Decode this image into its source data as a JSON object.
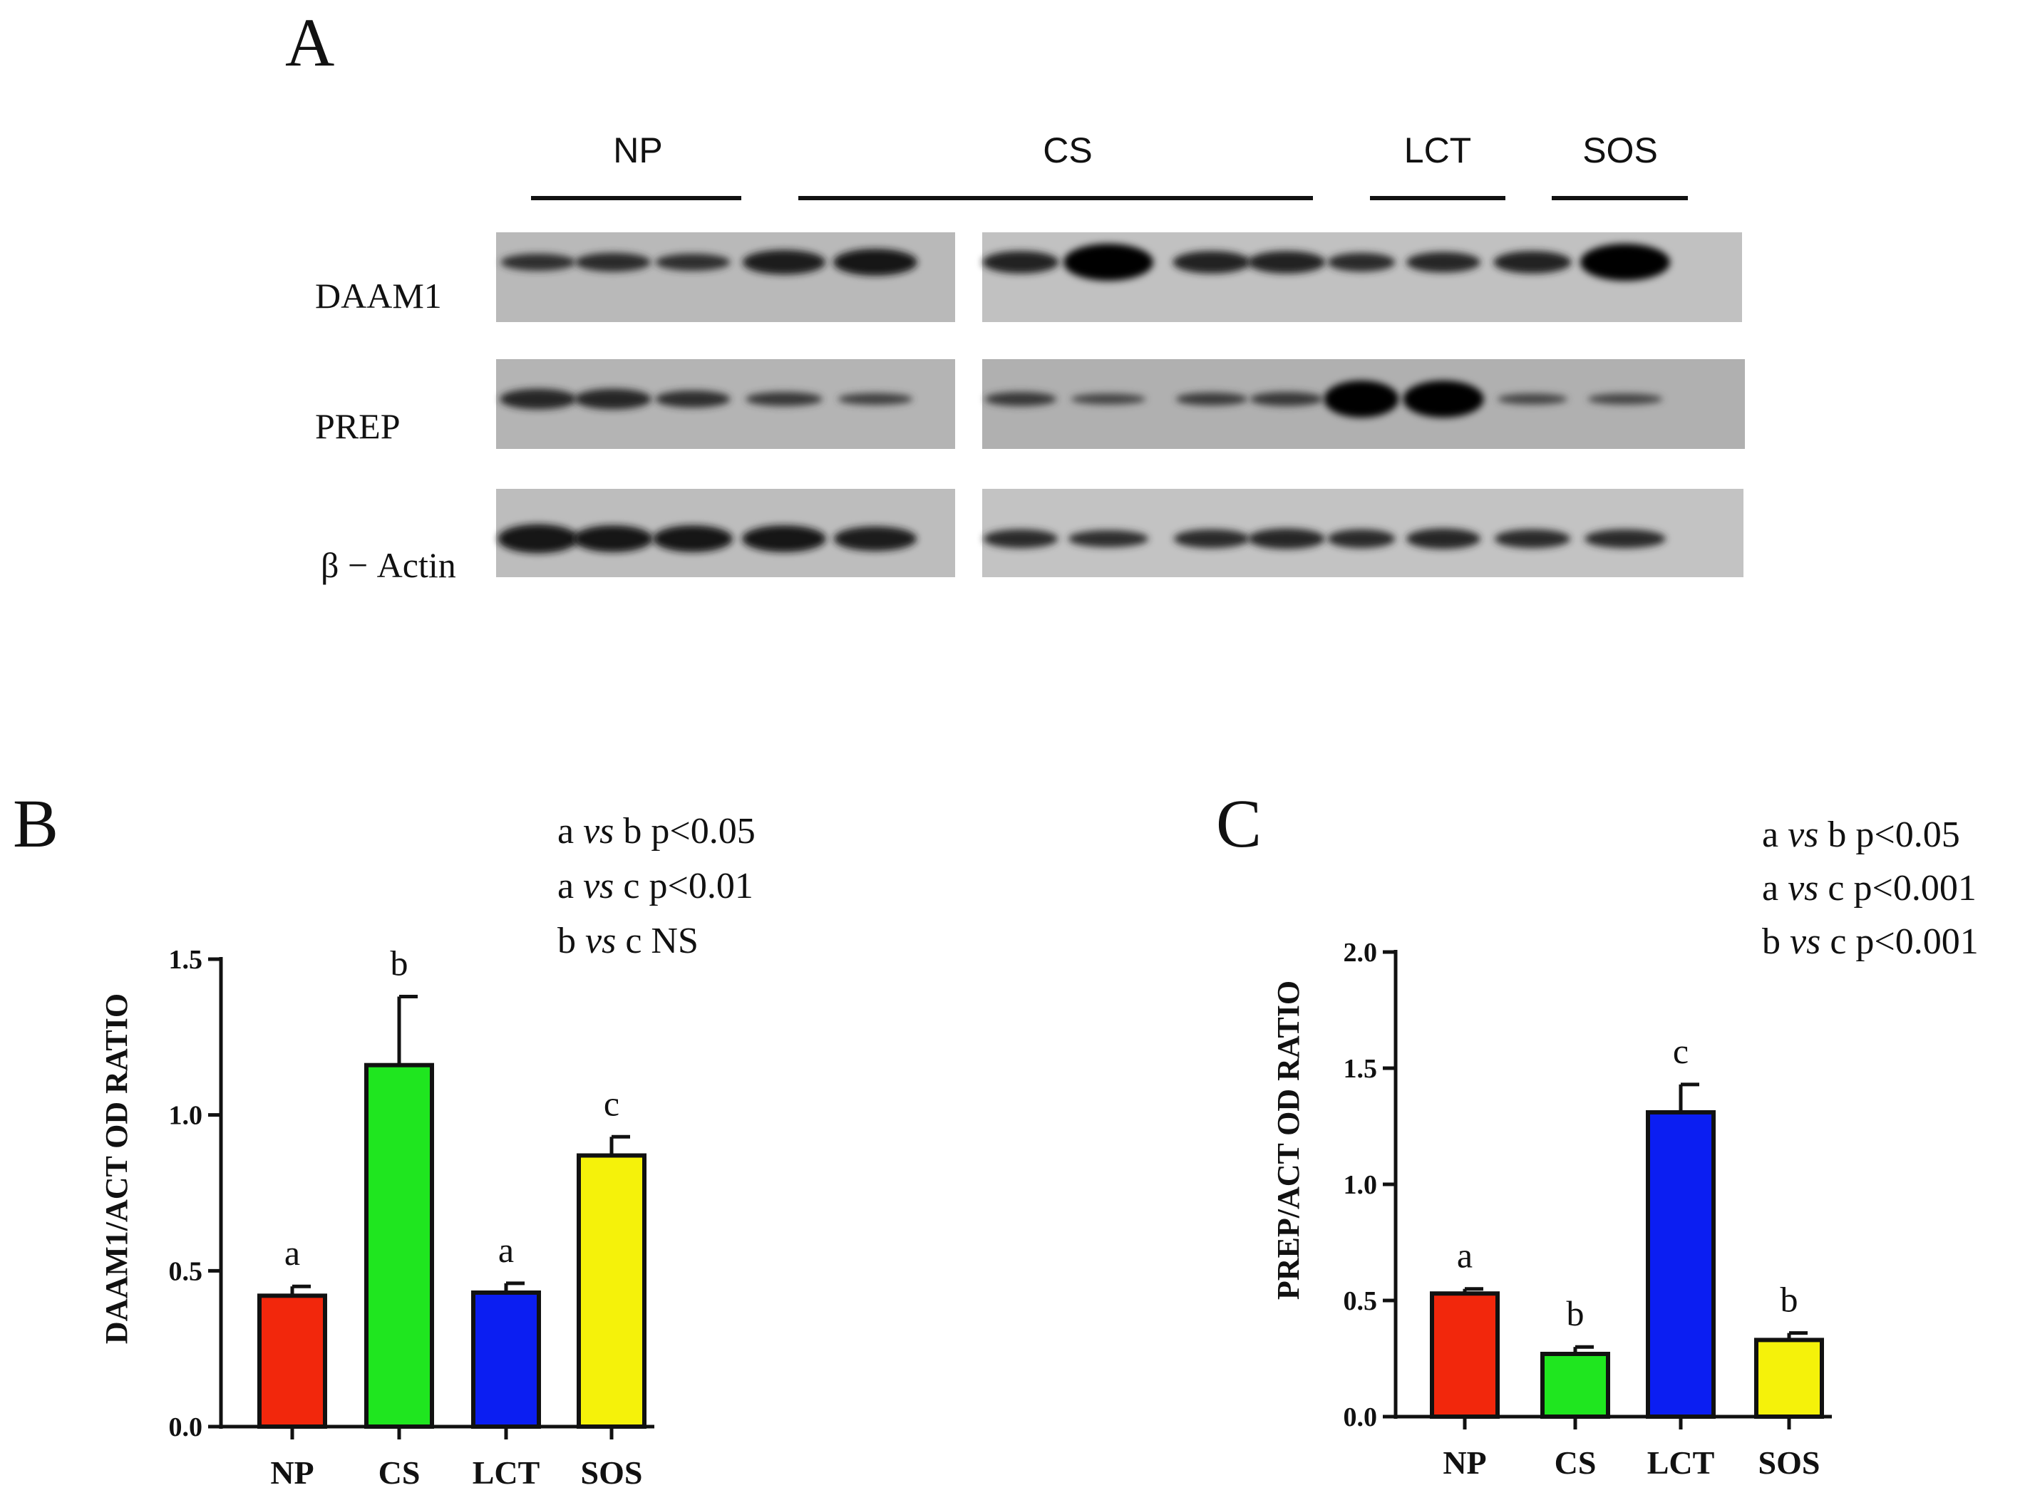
{
  "panel_a": {
    "letter": "A",
    "groups": [
      {
        "label": "NP",
        "lanes": 3
      },
      {
        "label": "CS",
        "lanes": 6
      },
      {
        "label": "LCT",
        "lanes": 2
      },
      {
        "label": "SOS",
        "lanes": 2
      }
    ],
    "blots": [
      {
        "label": "DAAM1",
        "band_intensity": [
          0.55,
          0.6,
          0.55,
          0.75,
          0.8,
          0.7,
          1.0,
          0.7,
          0.7,
          0.6,
          0.65,
          0.7,
          1.0
        ]
      },
      {
        "label": "PREP",
        "band_intensity": [
          0.65,
          0.65,
          0.55,
          0.45,
          0.35,
          0.45,
          0.3,
          0.4,
          0.45,
          1.0,
          1.0,
          0.3,
          0.3
        ]
      },
      {
        "label": "β − Actin",
        "band_intensity": [
          0.85,
          0.8,
          0.8,
          0.8,
          0.75,
          0.6,
          0.55,
          0.6,
          0.65,
          0.6,
          0.65,
          0.6,
          0.6
        ]
      }
    ]
  },
  "chart_data": [
    {
      "panel_letter": "B",
      "type": "bar",
      "categories": [
        "NP",
        "CS",
        "LCT",
        "SOS"
      ],
      "values": [
        0.42,
        1.16,
        0.43,
        0.87
      ],
      "errors": [
        0.03,
        0.22,
        0.03,
        0.06
      ],
      "sig_letters": [
        "a",
        "b",
        "a",
        "c"
      ],
      "colors": [
        "#f2270c",
        "#1fe61f",
        "#0b1ef2",
        "#f5f20a"
      ],
      "ylabel": "DAAM1/ACT OD RATIO",
      "ylim": [
        0,
        1.5
      ],
      "yticks": [
        0.0,
        0.5,
        1.0,
        1.5
      ],
      "ytick_labels": [
        "0.0",
        "0.5",
        "1.0",
        "1.5"
      ],
      "stats": [
        {
          "a": "a",
          "vs": "vs",
          "b": "b",
          "p": "p<0.05"
        },
        {
          "a": "a",
          "vs": "vs",
          "b": "c",
          "p": "p<0.01"
        },
        {
          "a": "b",
          "vs": "vs",
          "b": "c",
          "p": "NS"
        }
      ]
    },
    {
      "panel_letter": "C",
      "type": "bar",
      "categories": [
        "NP",
        "CS",
        "LCT",
        "SOS"
      ],
      "values": [
        0.53,
        0.27,
        1.31,
        0.33
      ],
      "errors": [
        0.02,
        0.03,
        0.12,
        0.03
      ],
      "sig_letters": [
        "a",
        "b",
        "c",
        "b"
      ],
      "colors": [
        "#f2270c",
        "#1fe61f",
        "#0b1ef2",
        "#f5f20a"
      ],
      "ylabel": "PREP/ACT OD RATIO",
      "ylim": [
        0,
        2.0
      ],
      "yticks": [
        0.0,
        0.5,
        1.0,
        1.5,
        2.0
      ],
      "ytick_labels": [
        "0.0",
        "0.5",
        "1.0",
        "1.5",
        "2.0"
      ],
      "stats": [
        {
          "a": "a",
          "vs": "vs",
          "b": "b",
          "p": "p<0.05"
        },
        {
          "a": "a",
          "vs": "vs",
          "b": "c",
          "p": "p<0.001"
        },
        {
          "a": "b",
          "vs": "vs",
          "b": "c",
          "p": "p<0.001"
        }
      ]
    }
  ]
}
